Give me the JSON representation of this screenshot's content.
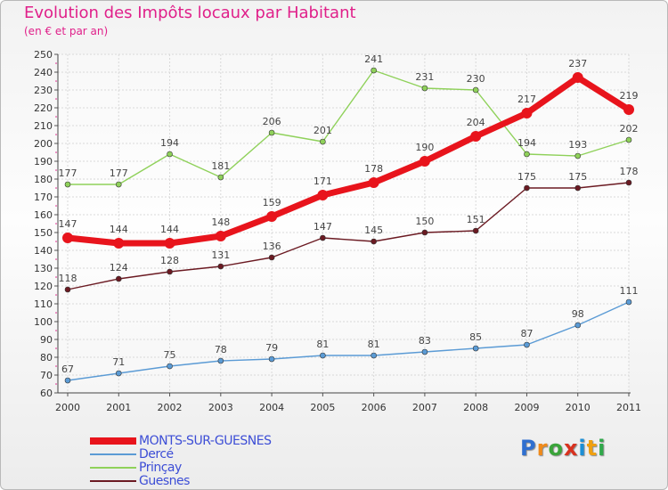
{
  "title": "Evolution des Impôts locaux par Habitant",
  "subtitle": "(en € et par an)",
  "logo": {
    "text": "Proxiti",
    "colors": [
      "#2f6fd0",
      "#f08a1a",
      "#3aa43a",
      "#d8321f",
      "#1b8fd6",
      "#f0a010",
      "#2fa84a"
    ]
  },
  "chart_data": {
    "type": "line",
    "x": [
      "2000",
      "2001",
      "2002",
      "2003",
      "2004",
      "2005",
      "2006",
      "2007",
      "2008",
      "2009",
      "2010",
      "2011"
    ],
    "ylim": [
      60,
      250
    ],
    "yticks": [
      60,
      70,
      80,
      90,
      100,
      110,
      120,
      130,
      140,
      150,
      160,
      170,
      180,
      190,
      200,
      210,
      220,
      230,
      240,
      250
    ],
    "grid": true,
    "legend_position": "bottom-left",
    "series": [
      {
        "name": "MONTS-SUR-GUESNES",
        "color": "#e8141c",
        "bold": true,
        "values": [
          147,
          144,
          144,
          148,
          159,
          171,
          178,
          190,
          204,
          217,
          237,
          219
        ]
      },
      {
        "name": "Dercé",
        "color": "#5b9bd5",
        "bold": false,
        "values": [
          67,
          71,
          75,
          78,
          79,
          81,
          81,
          83,
          85,
          87,
          98,
          111
        ]
      },
      {
        "name": "Prinçay",
        "color": "#8fd15a",
        "bold": false,
        "values": [
          177,
          177,
          194,
          181,
          206,
          201,
          241,
          231,
          230,
          194,
          193,
          202
        ]
      },
      {
        "name": "Guesnes",
        "color": "#6b1a22",
        "bold": false,
        "values": [
          118,
          124,
          128,
          131,
          136,
          147,
          145,
          150,
          151,
          175,
          175,
          178
        ]
      }
    ]
  }
}
